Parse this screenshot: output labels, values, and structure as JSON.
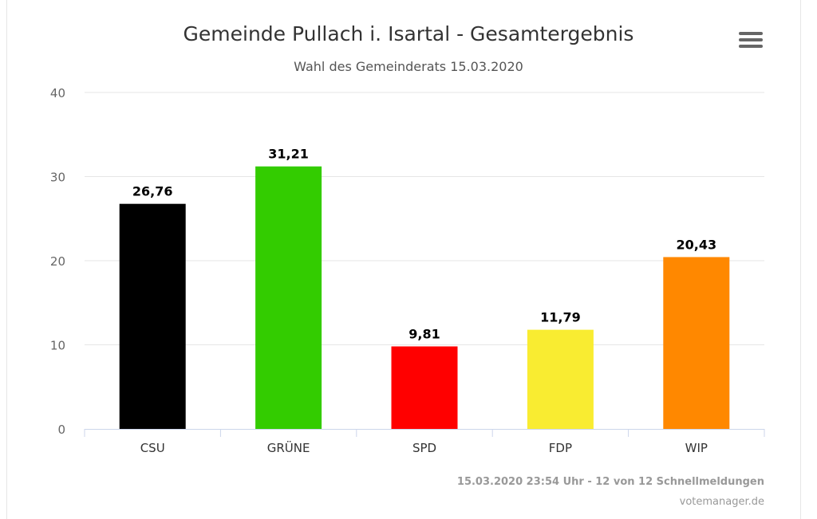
{
  "title": "Gemeinde Pullach i. Isartal - Gesamtergebnis",
  "subtitle": "Wahl des Gemeinderats 15.03.2020",
  "menu_icon": "hamburger-menu-icon",
  "credits": {
    "line1": "15.03.2020 23:54 Uhr - 12 von 12 Schnellmeldungen",
    "line2": "votemanager.de"
  },
  "chart_data": {
    "type": "bar",
    "categories": [
      "CSU",
      "GRÜNE",
      "SPD",
      "FDP",
      "WIP"
    ],
    "values": [
      26.76,
      31.21,
      9.81,
      11.79,
      20.43
    ],
    "data_labels": [
      "26,76",
      "31,21",
      "9,81",
      "11,79",
      "20,43"
    ],
    "colors": [
      "#000000",
      "#33cc00",
      "#ff0000",
      "#f9ec31",
      "#ff8800"
    ],
    "ylim": [
      0,
      40
    ],
    "yticks": [
      0,
      10,
      20,
      30,
      40
    ],
    "grid": true,
    "legend": "none"
  }
}
